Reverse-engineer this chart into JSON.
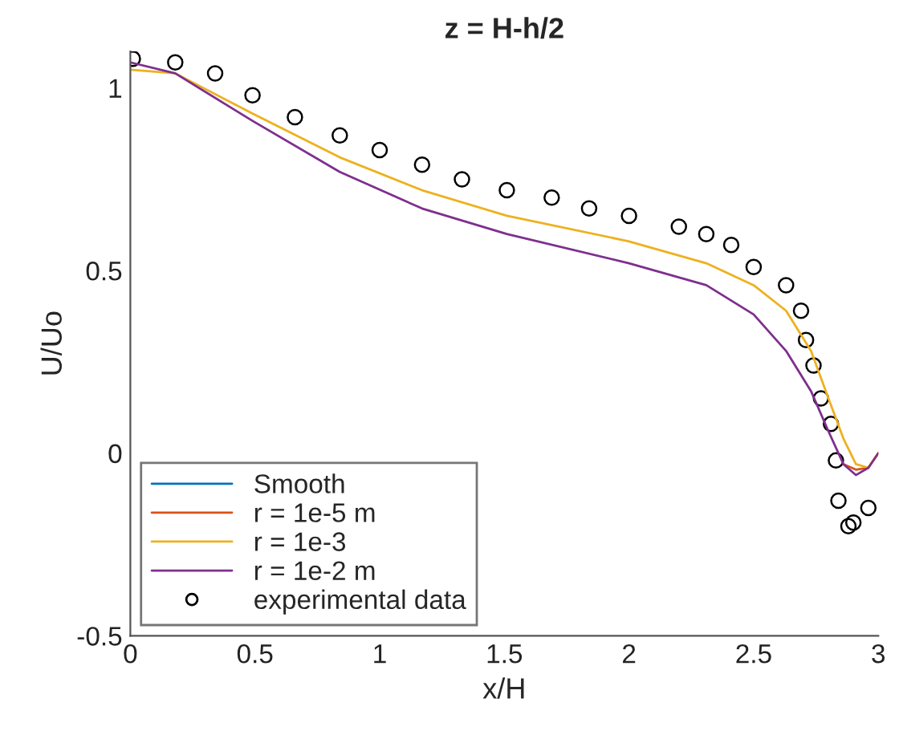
{
  "chart_data": {
    "type": "line",
    "title": "z = H-h/2",
    "xlabel": "x/H",
    "ylabel": "U/Uo",
    "xlim": [
      0,
      3
    ],
    "xticks": [
      0,
      0.5,
      1,
      1.5,
      2,
      2.5,
      3
    ],
    "ylim": [
      -0.5,
      1.1
    ],
    "yticks": [
      -0.5,
      0,
      0.5,
      1
    ],
    "grid": false,
    "legend": "bottom left",
    "series": [
      {
        "name": "Smooth",
        "color": "#0072bd"
      },
      {
        "name": "r = 1e-5 m",
        "color": "#d95319",
        "x": [
          2.86,
          2.91,
          2.96,
          3.0
        ],
        "values": [
          -0.03,
          -0.045,
          -0.04,
          0.0
        ]
      },
      {
        "name": "r = 1e-3",
        "color": "#edb120",
        "x": [
          0,
          0.18,
          0.49,
          0.84,
          1.17,
          1.51,
          2.0,
          2.31,
          2.5,
          2.63,
          2.73,
          2.8,
          2.86,
          2.91,
          2.96,
          3.0
        ],
        "values": [
          1.05,
          1.04,
          0.93,
          0.81,
          0.72,
          0.65,
          0.58,
          0.52,
          0.46,
          0.39,
          0.28,
          0.15,
          0.04,
          -0.03,
          -0.04,
          0.0
        ]
      },
      {
        "name": "r = 1e-2 m",
        "color": "#7e2f8e",
        "x": [
          0,
          0.18,
          0.49,
          0.84,
          1.17,
          1.51,
          2.0,
          2.31,
          2.5,
          2.63,
          2.73,
          2.8,
          2.86,
          2.91,
          2.96,
          3.0
        ],
        "values": [
          1.07,
          1.04,
          0.91,
          0.77,
          0.67,
          0.6,
          0.52,
          0.46,
          0.38,
          0.28,
          0.17,
          0.06,
          -0.03,
          -0.06,
          -0.04,
          0.0
        ]
      },
      {
        "name": "experimental data",
        "type": "scatter",
        "marker": "circle",
        "color": "#000000",
        "x": [
          0.01,
          0.18,
          0.34,
          0.49,
          0.66,
          0.84,
          1.0,
          1.17,
          1.33,
          1.51,
          1.69,
          1.84,
          2.0,
          2.2,
          2.31,
          2.41,
          2.5,
          2.63,
          2.69,
          2.71,
          2.74,
          2.77,
          2.81,
          2.83,
          2.84,
          2.88,
          2.9,
          2.96
        ],
        "values": [
          1.08,
          1.07,
          1.04,
          0.98,
          0.92,
          0.87,
          0.83,
          0.79,
          0.75,
          0.72,
          0.7,
          0.67,
          0.65,
          0.62,
          0.6,
          0.57,
          0.51,
          0.46,
          0.39,
          0.31,
          0.24,
          0.15,
          0.08,
          -0.02,
          -0.13,
          -0.2,
          -0.19,
          -0.15
        ]
      }
    ]
  }
}
